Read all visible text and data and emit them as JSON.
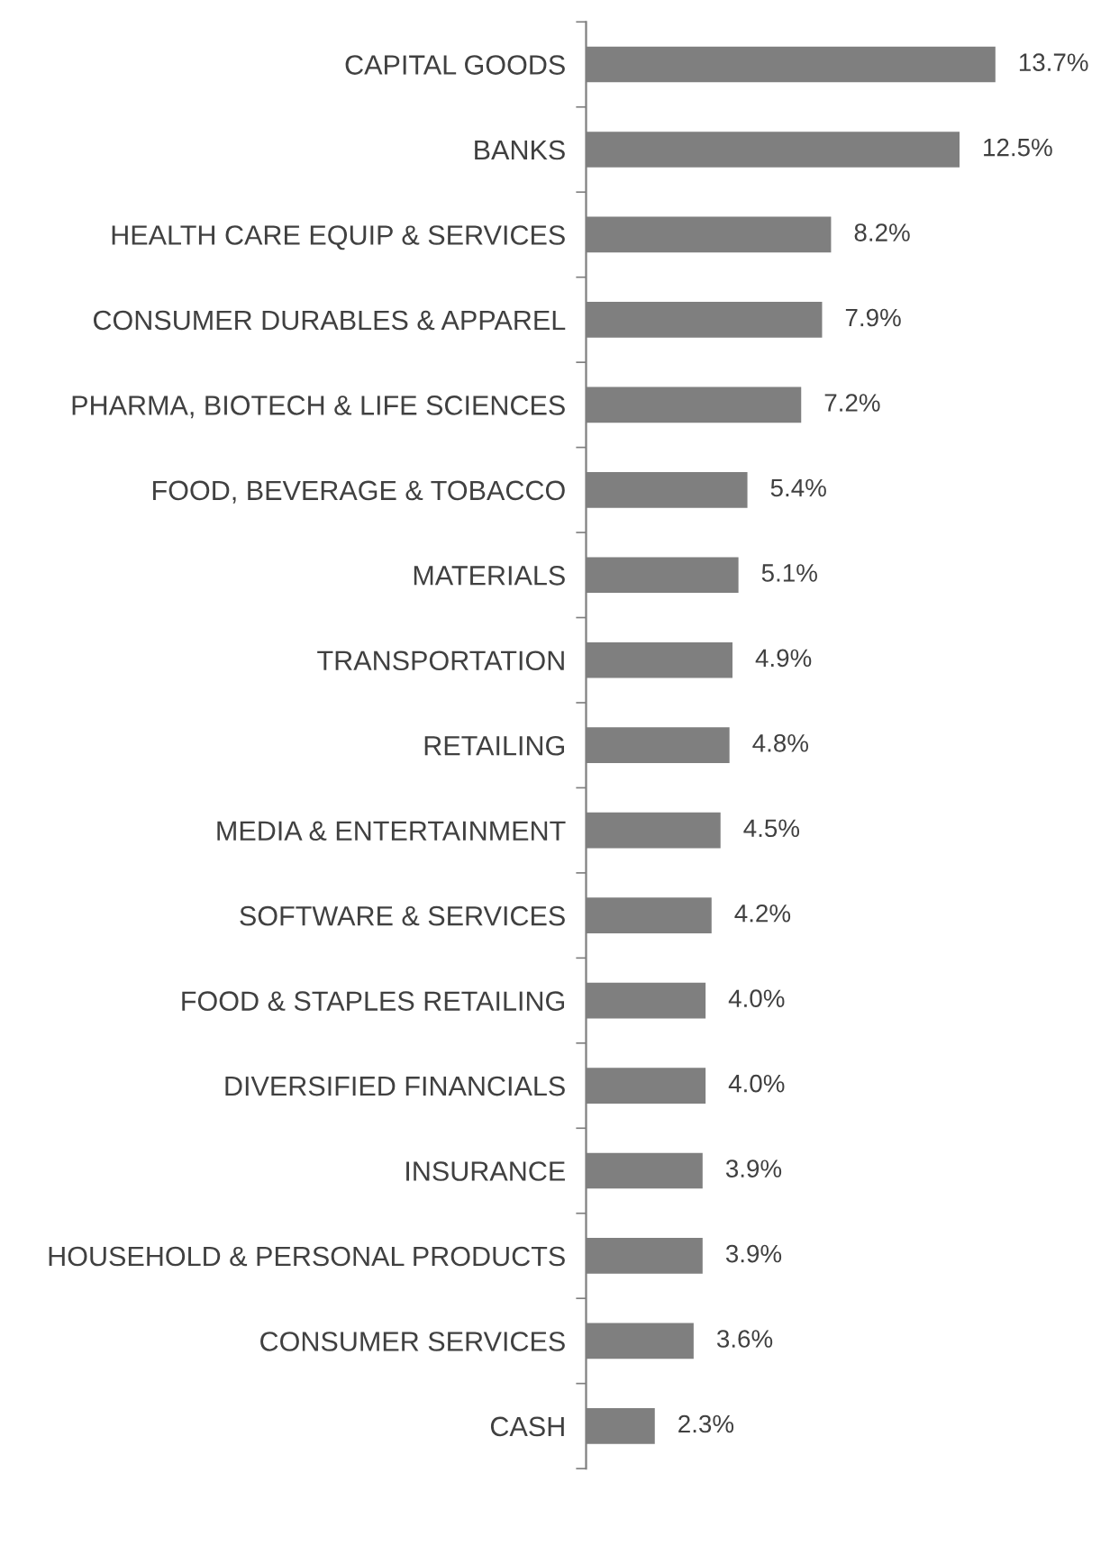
{
  "chart_data": {
    "type": "bar",
    "orientation": "horizontal",
    "categories": [
      "CAPITAL GOODS",
      "BANKS",
      "HEALTH CARE EQUIP & SERVICES",
      "CONSUMER DURABLES & APPAREL",
      "PHARMA, BIOTECH & LIFE SCIENCES",
      "FOOD, BEVERAGE & TOBACCO",
      "MATERIALS",
      "TRANSPORTATION",
      "RETAILING",
      "MEDIA & ENTERTAINMENT",
      "SOFTWARE & SERVICES",
      "FOOD & STAPLES RETAILING",
      "DIVERSIFIED FINANCIALS",
      "INSURANCE",
      "HOUSEHOLD & PERSONAL PRODUCTS",
      "CONSUMER SERVICES",
      "CASH"
    ],
    "values": [
      13.7,
      12.5,
      8.2,
      7.9,
      7.2,
      5.4,
      5.1,
      4.9,
      4.8,
      4.5,
      4.2,
      4.0,
      4.0,
      3.9,
      3.9,
      3.6,
      2.3
    ],
    "value_labels": [
      "13.7%",
      "12.5%",
      "8.2%",
      "7.9%",
      "7.2%",
      "5.4%",
      "5.1%",
      "4.9%",
      "4.8%",
      "4.5%",
      "4.2%",
      "4.0%",
      "4.0%",
      "3.9%",
      "3.9%",
      "3.6%",
      "2.3%"
    ],
    "color": "#7f7f7f",
    "grid": false,
    "legend": false
  }
}
